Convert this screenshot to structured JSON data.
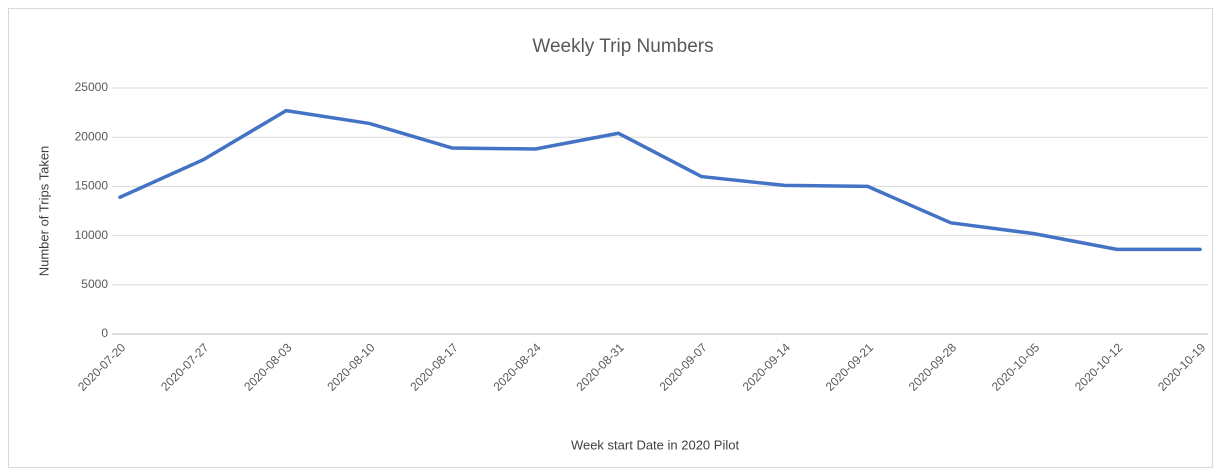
{
  "chart_data": {
    "type": "line",
    "title": "Weekly Trip Numbers",
    "x_label": "Week start Date in 2020 Pilot",
    "y_label": "Number of Trips Taken",
    "categories": [
      "2020-07-20",
      "2020-07-27",
      "2020-08-03",
      "2020-08-10",
      "2020-08-17",
      "2020-08-24",
      "2020-08-31",
      "2020-09-07",
      "2020-09-14",
      "2020-09-21",
      "2020-09-28",
      "2020-10-05",
      "2020-10-12",
      "2020-10-19"
    ],
    "series": [
      {
        "name": "Number of Trips Taken",
        "color": "#4472c4",
        "values": [
          13900,
          17700,
          22700,
          21400,
          18900,
          18800,
          20400,
          16000,
          15100,
          15000,
          11300,
          10200,
          8600,
          8600
        ]
      }
    ],
    "ylim": [
      0,
      25000
    ],
    "yticks": [
      0,
      5000,
      10000,
      15000,
      20000,
      25000
    ],
    "grid": true
  }
}
